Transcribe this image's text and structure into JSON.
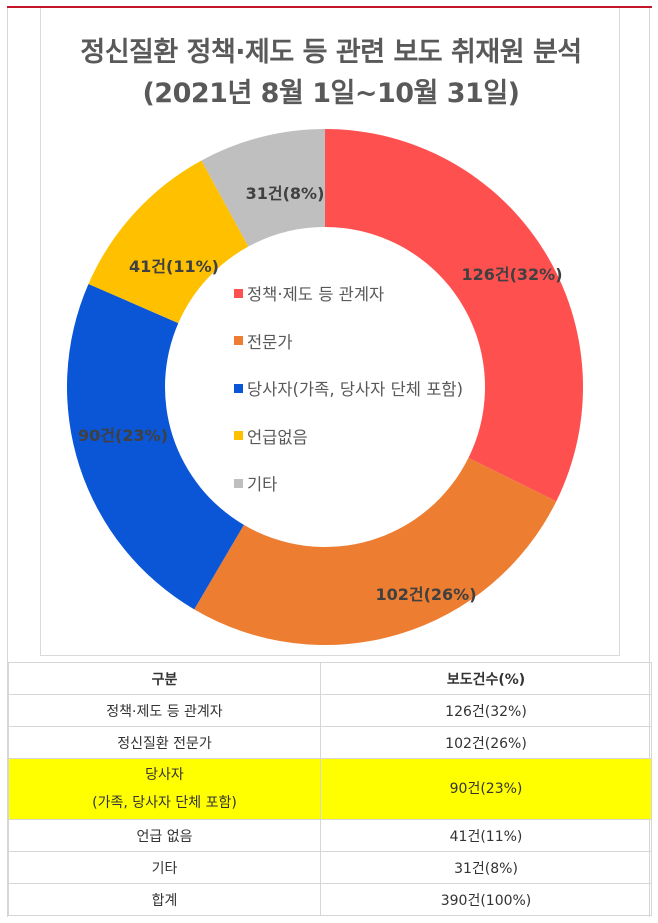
{
  "chart": {
    "title_line1": "정신질환 정책·제도 등 관련 보도 취재원 분석",
    "title_line2": "(2021년 8월 1일~10월 31일)"
  },
  "chart_data": {
    "type": "pie",
    "subtype": "donut",
    "title": "정신질환 정책·제도 등 관련 보도 취재원 분석 (2021년 8월 1일~10월 31일)",
    "categories": [
      "정책·제도 등 관계자",
      "전문가",
      "당사자(가족, 당사자 단체 포함)",
      "언급없음",
      "기타"
    ],
    "values": [
      126,
      102,
      90,
      41,
      31
    ],
    "percentages": [
      32,
      26,
      23,
      11,
      8
    ],
    "data_labels": [
      "126건(32%)",
      "102건(26%)",
      "90건(23%)",
      "41건(11%)",
      "31건(8%)"
    ],
    "colors": [
      "#ff5050",
      "#ed7d31",
      "#0a56d6",
      "#ffc000",
      "#bfbfbf"
    ],
    "legend_position": "center",
    "start_angle_deg": 0,
    "direction": "clockwise"
  },
  "legend": {
    "items": [
      {
        "label": "정책·제도 등 관계자",
        "color": "#ff5050"
      },
      {
        "label": "전문가",
        "color": "#ed7d31"
      },
      {
        "label": "당사자(가족, 당사자 단체 포함)",
        "color": "#0a56d6"
      },
      {
        "label": "언급없음",
        "color": "#ffc000"
      },
      {
        "label": "기타",
        "color": "#bfbfbf"
      }
    ]
  },
  "table": {
    "headers": [
      "구분",
      "보도건수(%)"
    ],
    "rows": [
      {
        "category": "정책·제도 등 관계자",
        "value": "126건(32%)"
      },
      {
        "category": "정신질환 전문가",
        "value": "102건(26%)"
      },
      {
        "category": "당사자",
        "category_sub": "(가족, 당사자 단체 포함)",
        "value": "90건(23%)",
        "highlight": "#ffff00"
      },
      {
        "category": "언급 없음",
        "value": "41건(11%)"
      },
      {
        "category": "기타",
        "value": "31건(8%)"
      },
      {
        "category": "합계",
        "value": "390건(100%)"
      }
    ]
  },
  "colors": {
    "top_rule": "#c4162a",
    "highlight_row": "#ffff00"
  }
}
